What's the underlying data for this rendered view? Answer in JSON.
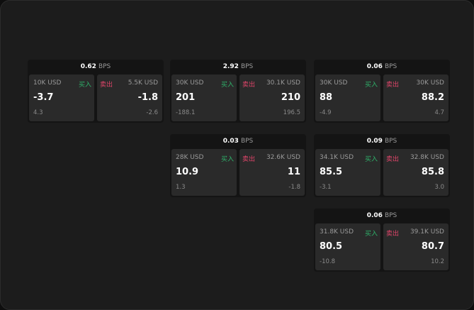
{
  "cards": [
    {
      "bps": "0.62",
      "unit": "BPS",
      "buy": {
        "qty": "10K USD",
        "label": "买入",
        "price": "-3.7",
        "sub": "4.3"
      },
      "sell": {
        "qty": "5.5K USD",
        "label": "卖出",
        "price": "-1.8",
        "sub": "-2.6"
      }
    },
    {
      "bps": "2.92",
      "unit": "BPS",
      "buy": {
        "qty": "30K USD",
        "label": "买入",
        "price": "201",
        "sub": "-188.1"
      },
      "sell": {
        "qty": "30.1K USD",
        "label": "卖出",
        "price": "210",
        "sub": "196.5"
      }
    },
    {
      "bps": "0.06",
      "unit": "BPS",
      "buy": {
        "qty": "30K USD",
        "label": "买入",
        "price": "88",
        "sub": "-4.9"
      },
      "sell": {
        "qty": "30K USD",
        "label": "卖出",
        "price": "88.2",
        "sub": "4.7"
      }
    },
    {
      "bps": "0.03",
      "unit": "BPS",
      "buy": {
        "qty": "28K USD",
        "label": "买入",
        "price": "10.9",
        "sub": "1.3"
      },
      "sell": {
        "qty": "32.6K USD",
        "label": "卖出",
        "price": "11",
        "sub": "-1.8"
      }
    },
    {
      "bps": "0.09",
      "unit": "BPS",
      "buy": {
        "qty": "34.1K USD",
        "label": "买入",
        "price": "85.5",
        "sub": "-3.1"
      },
      "sell": {
        "qty": "32.8K USD",
        "label": "卖出",
        "price": "85.8",
        "sub": "3.0"
      }
    },
    {
      "bps": "0.06",
      "unit": "BPS",
      "buy": {
        "qty": "31.8K USD",
        "label": "买入",
        "price": "80.5",
        "sub": "-10.8"
      },
      "sell": {
        "qty": "39.1K USD",
        "label": "卖出",
        "price": "80.7",
        "sub": "10.2"
      }
    }
  ],
  "colors": {
    "buy": "#2fb36b",
    "sell": "#e0456a"
  }
}
